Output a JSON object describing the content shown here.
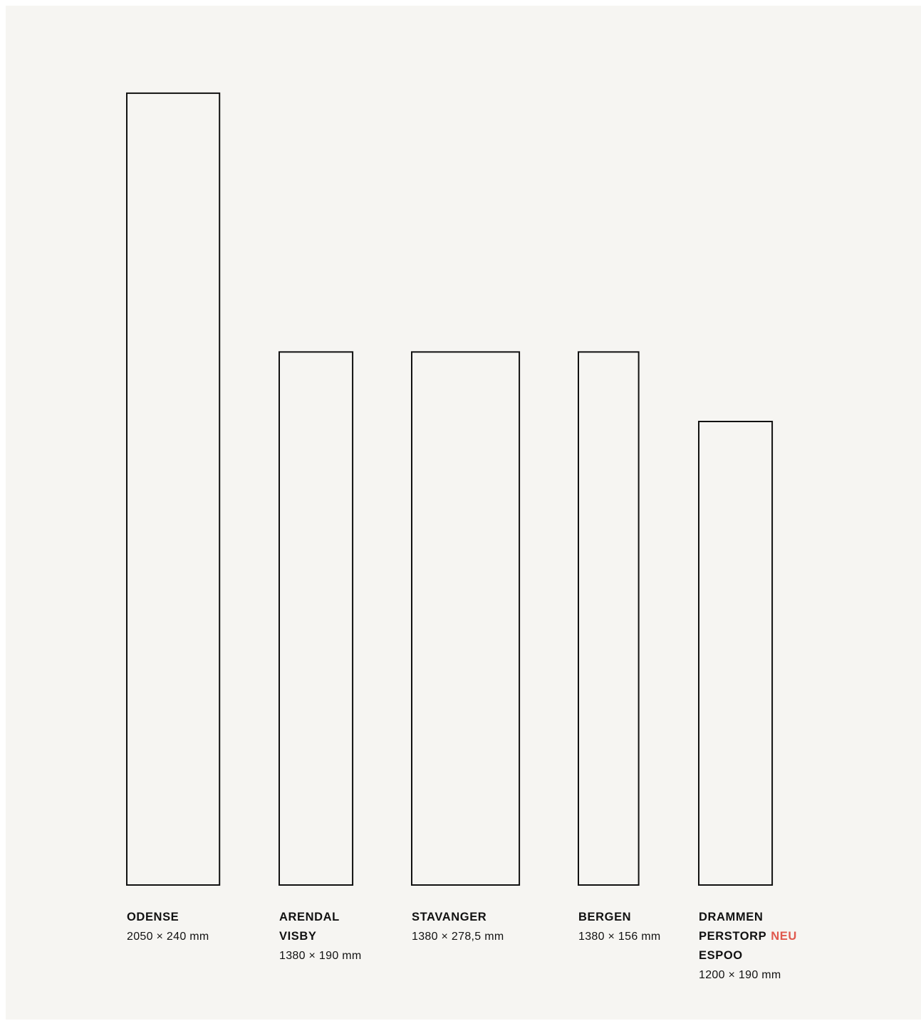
{
  "unit": "mm",
  "accent_color": "#e0584d",
  "outline_color": "#111111",
  "panel_color": "#f6f5f2",
  "planks": [
    {
      "names": [
        {
          "label": "ODENSE",
          "badge": ""
        }
      ],
      "dimensions": "2050 × 240 mm",
      "length": 2050,
      "width": 240
    },
    {
      "names": [
        {
          "label": "ARENDAL",
          "badge": ""
        },
        {
          "label": "VISBY",
          "badge": ""
        }
      ],
      "dimensions": "1380 × 190 mm",
      "length": 1380,
      "width": 190
    },
    {
      "names": [
        {
          "label": "STAVANGER",
          "badge": ""
        }
      ],
      "dimensions": "1380 × 278,5 mm",
      "length": 1380,
      "width": 278.5
    },
    {
      "names": [
        {
          "label": "BERGEN",
          "badge": ""
        }
      ],
      "dimensions": "1380 × 156 mm",
      "length": 1380,
      "width": 156
    },
    {
      "names": [
        {
          "label": "DRAMMEN",
          "badge": ""
        },
        {
          "label": "PERSTORP",
          "badge": "NEU"
        },
        {
          "label": "ESPOO",
          "badge": ""
        }
      ],
      "dimensions": "1200 × 190 mm",
      "length": 1200,
      "width": 190
    }
  ]
}
